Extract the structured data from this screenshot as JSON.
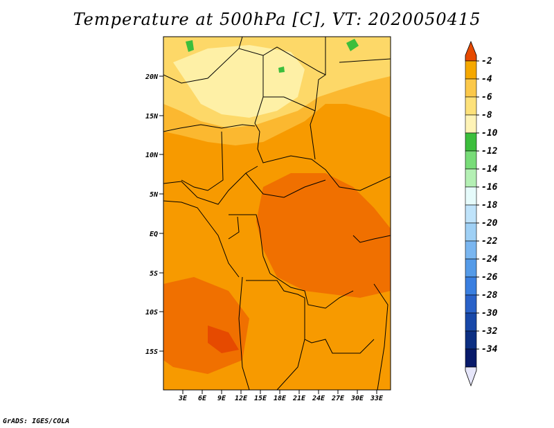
{
  "title": "Temperature at 500hPa [C], VT: 2020050415",
  "credit": "GrADS: IGES/COLA",
  "map": {
    "lon_range": [
      0,
      35
    ],
    "lat_range": [
      -20,
      25
    ],
    "lon_ticks": [
      "3E",
      "6E",
      "9E",
      "12E",
      "15E",
      "18E",
      "21E",
      "24E",
      "27E",
      "30E",
      "33E"
    ],
    "lat_ticks": [
      "20N",
      "15N",
      "10N",
      "5N",
      "EQ",
      "5S",
      "10S",
      "15S"
    ],
    "palette": {
      "c2": "#e64a00",
      "c4": "#f07000",
      "c6": "#f79a00",
      "c8": "#fbb830",
      "c10": "#fdd868",
      "c12": "#fef0a6",
      "c14": "#3cbe3c",
      "c16": "#7edc7e",
      "c18": "#b6f0b6"
    }
  },
  "colorbar": {
    "labels": [
      "-2",
      "-4",
      "-6",
      "-8",
      "-10",
      "-12",
      "-14",
      "-16",
      "-18",
      "-20",
      "-22",
      "-24",
      "-26",
      "-28",
      "-30",
      "-32",
      "-34"
    ],
    "colors": [
      "#f5a800",
      "#fbc84a",
      "#fde17a",
      "#fef3b6",
      "#3cbe3c",
      "#78dc78",
      "#b4f0b4",
      "#e6fbfb",
      "#bfe3fa",
      "#9fd0f5",
      "#7ab6f0",
      "#559be8",
      "#3a7fe0",
      "#2a62c8",
      "#1848a8",
      "#0c2f82",
      "#081a6a"
    ],
    "top_color": "#e64a00",
    "bottom_color": "#e6e6fa"
  }
}
